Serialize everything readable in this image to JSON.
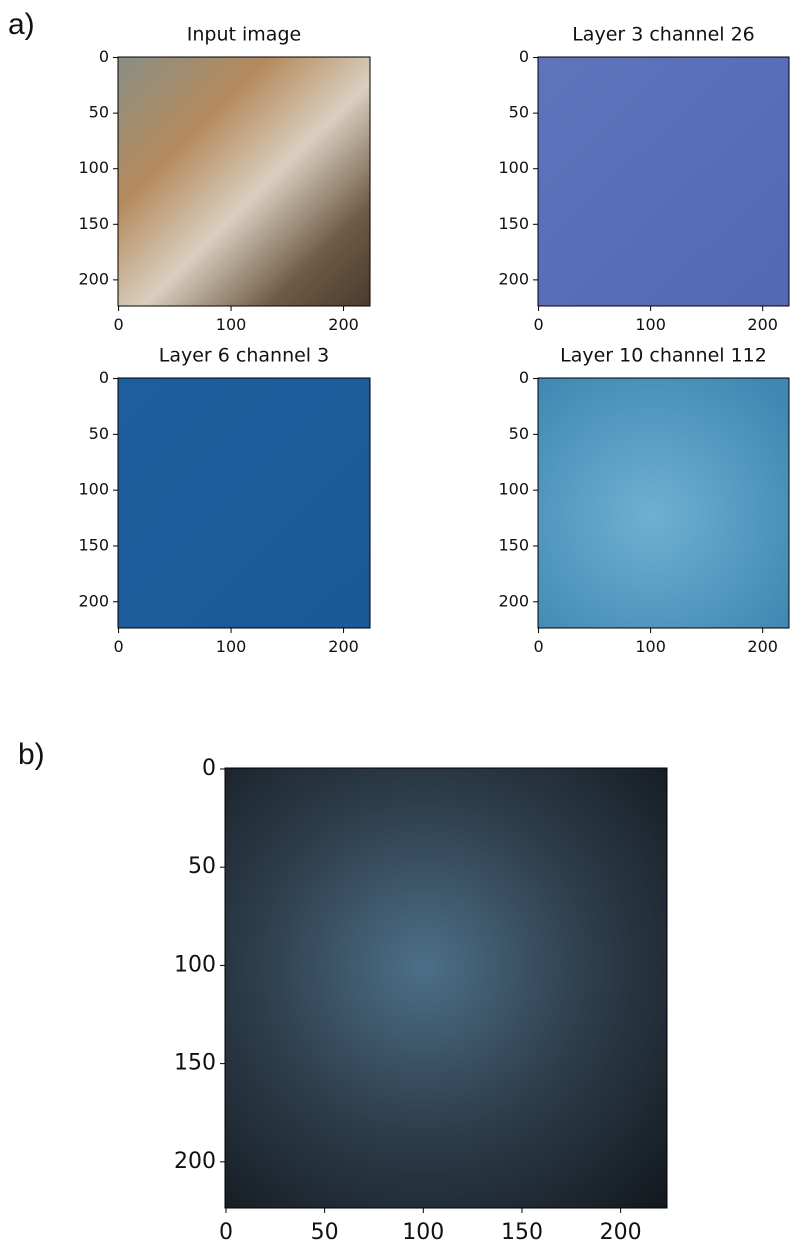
{
  "panel_labels": [
    "a)",
    "b)"
  ],
  "chart_data": [
    {
      "type": "image",
      "title": "Input image",
      "xlim": [
        -0.5,
        223.5
      ],
      "ylim": [
        223.5,
        -0.5
      ],
      "xticks": [
        0,
        100,
        200
      ],
      "yticks": [
        0,
        50,
        100,
        150,
        200
      ]
    },
    {
      "type": "image",
      "title": "Layer 3 channel 26",
      "xlim": [
        -0.5,
        223.5
      ],
      "ylim": [
        223.5,
        -0.5
      ],
      "xticks": [
        0,
        100,
        200
      ],
      "yticks": [
        0,
        50,
        100,
        150,
        200
      ]
    },
    {
      "type": "image",
      "title": "Layer 6 channel 3",
      "xlim": [
        -0.5,
        223.5
      ],
      "ylim": [
        223.5,
        -0.5
      ],
      "xticks": [
        0,
        100,
        200
      ],
      "yticks": [
        0,
        50,
        100,
        150,
        200
      ]
    },
    {
      "type": "image",
      "title": "Layer 10 channel 112",
      "xlim": [
        -0.5,
        223.5
      ],
      "ylim": [
        223.5,
        -0.5
      ],
      "xticks": [
        0,
        100,
        200
      ],
      "yticks": [
        0,
        50,
        100,
        150,
        200
      ]
    },
    {
      "type": "image",
      "xlim": [
        -0.5,
        223.5
      ],
      "ylim": [
        223.5,
        -0.5
      ],
      "xticks": [
        0,
        50,
        100,
        150,
        200
      ],
      "yticks": [
        0,
        50,
        100,
        150,
        200
      ]
    }
  ]
}
